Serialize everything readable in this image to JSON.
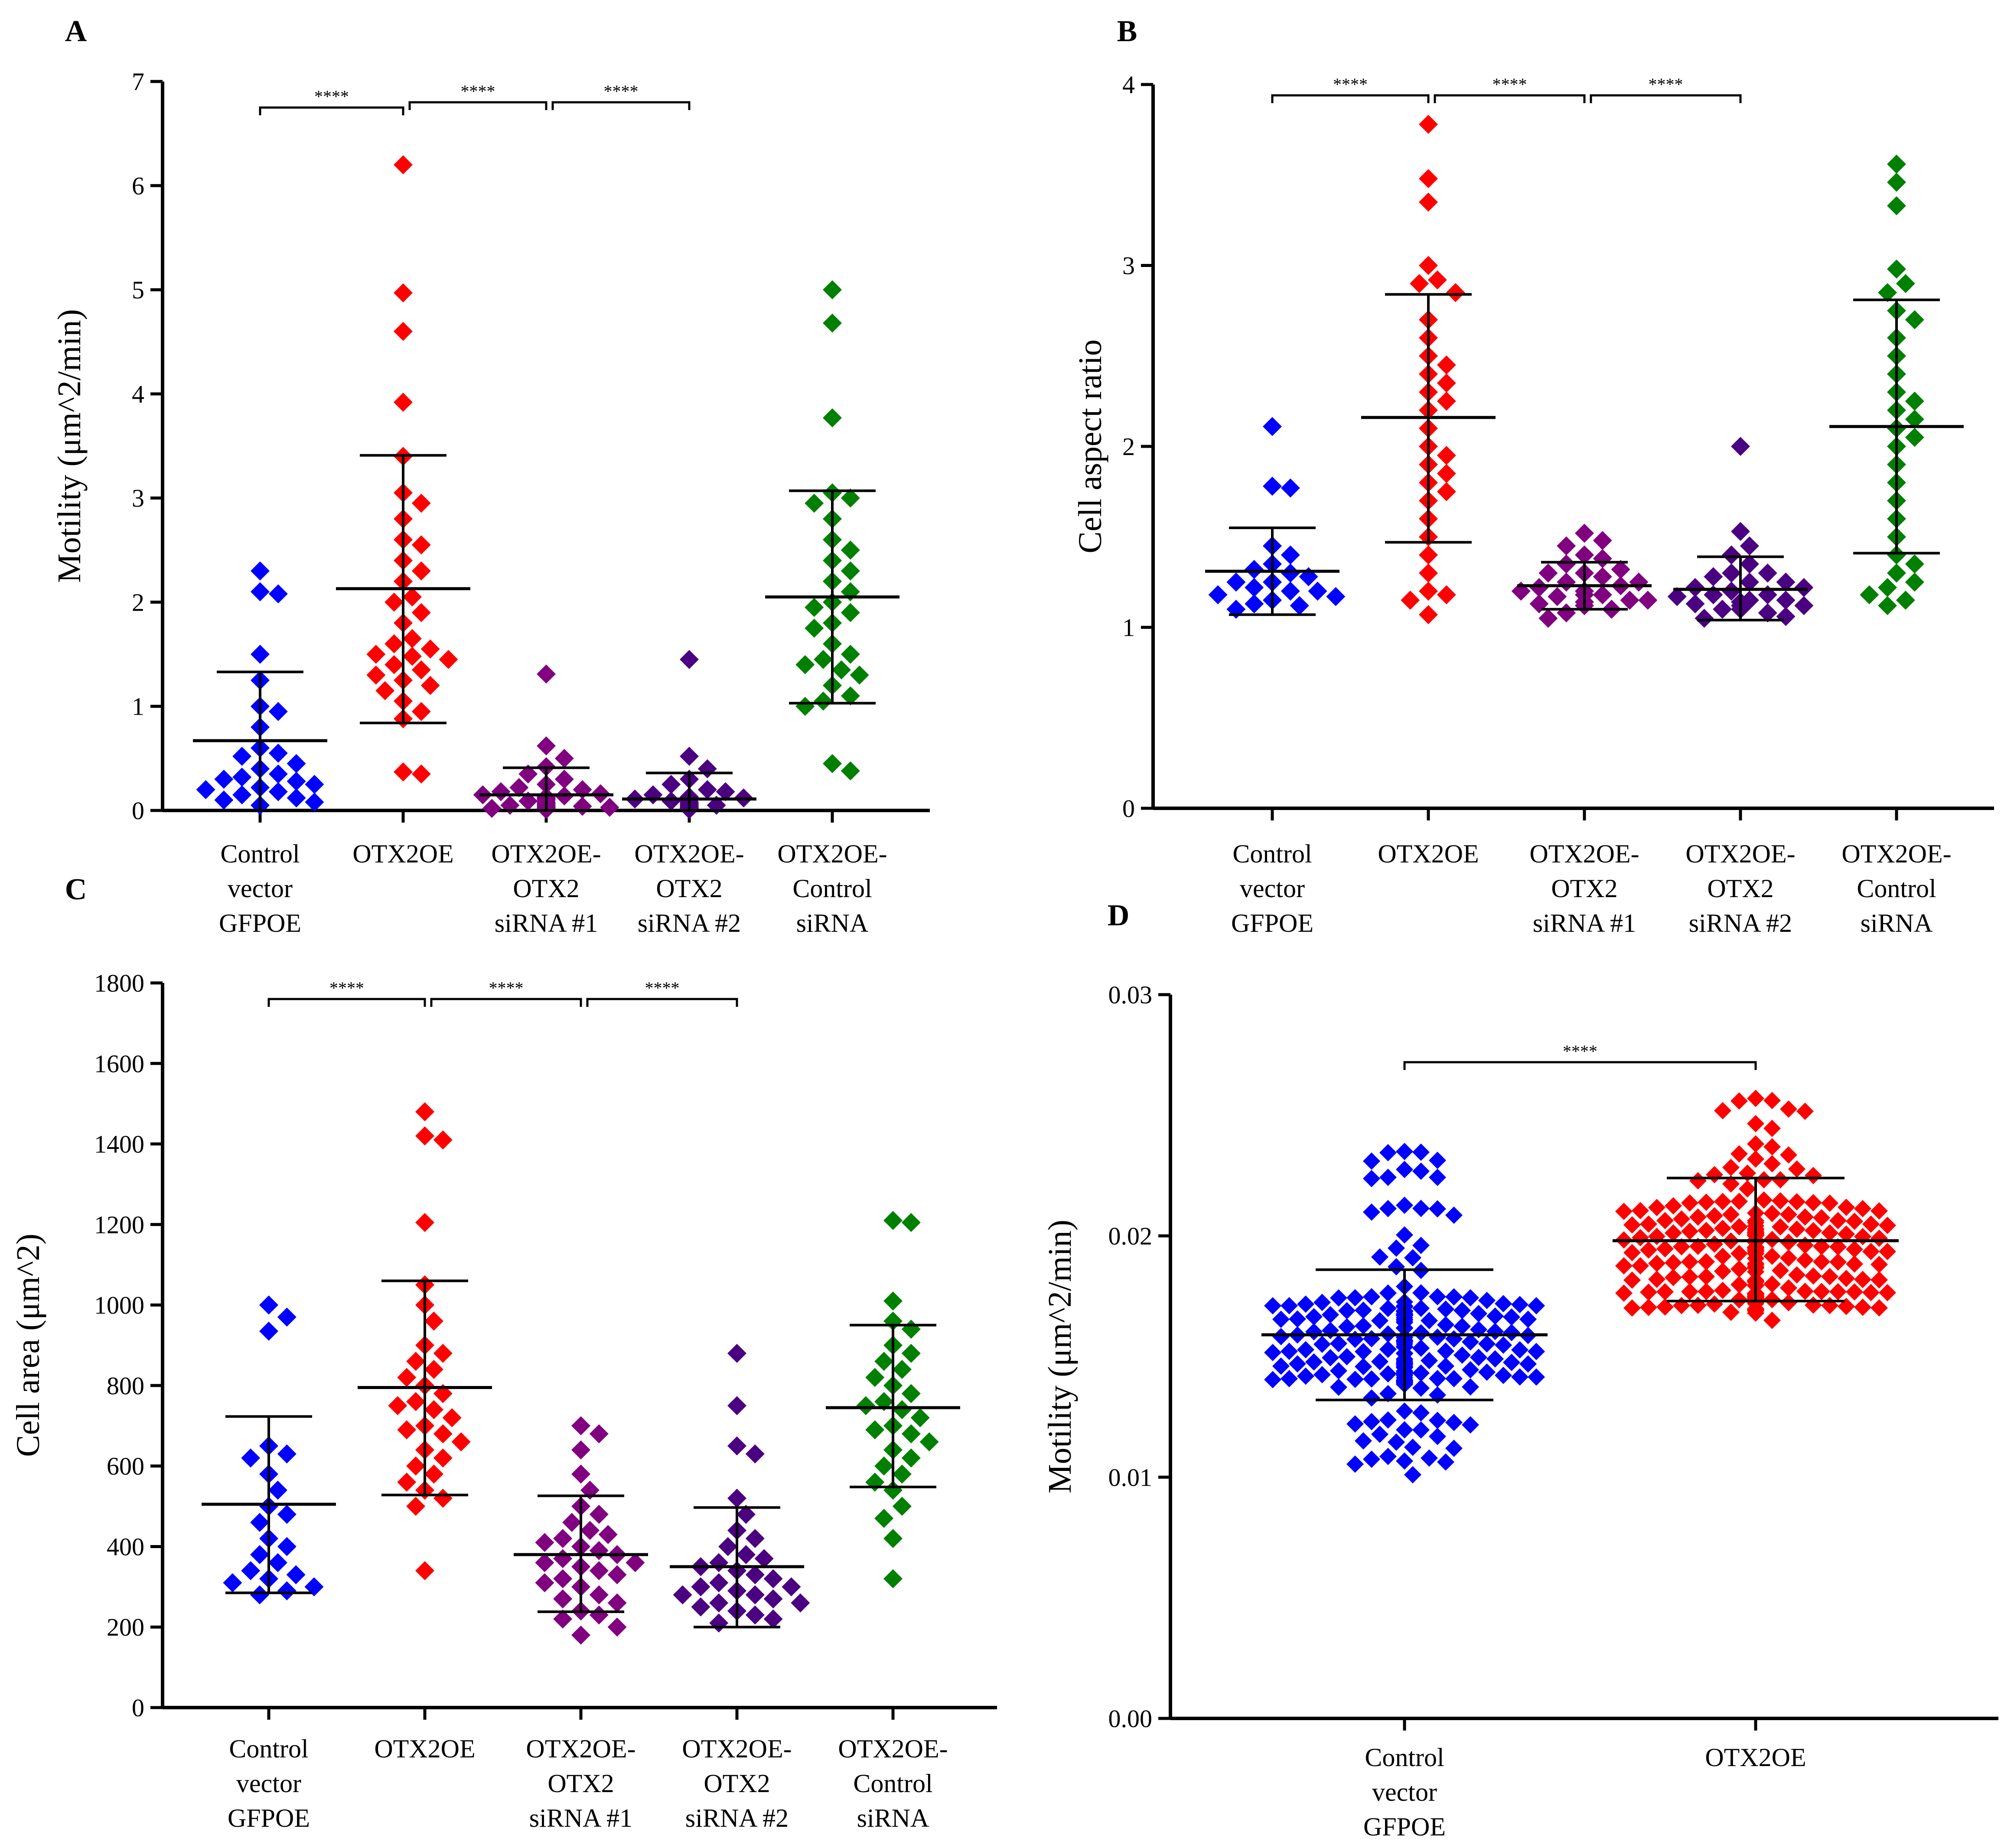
{
  "colors": {
    "ctrl": "#0000ff",
    "otx": "#ff0000",
    "si1": "#800080",
    "si2": "#4b0082",
    "ctrlsi": "#008000"
  },
  "chart_data": [
    {
      "panel": "A",
      "type": "scatter",
      "ylabel": "Motility (μm^2/min)",
      "ylim": [
        0,
        7
      ],
      "yticks": [
        "0",
        "1",
        "2",
        "3",
        "4",
        "5",
        "6",
        "7"
      ],
      "categories": [
        [
          "Control",
          "vector",
          "GFPOE"
        ],
        [
          "OTX2OE"
        ],
        [
          "OTX2OE-",
          "OTX2",
          "siRNA #1"
        ],
        [
          "OTX2OE-",
          "OTX2",
          "siRNA #2"
        ],
        [
          "OTX2OE-",
          "Control",
          "siRNA"
        ]
      ],
      "series": [
        {
          "name": "Control vector GFPOE",
          "color": "#0000ff",
          "mean": 0.67,
          "sd_low": 0.0,
          "sd_high": 1.33,
          "values": [
            2.3,
            2.1,
            2.08,
            1.5,
            1.25,
            1.0,
            0.95,
            0.8,
            0.6,
            0.55,
            0.52,
            0.45,
            0.4,
            0.35,
            0.32,
            0.3,
            0.28,
            0.25,
            0.22,
            0.2,
            0.18,
            0.15,
            0.12,
            0.1,
            0.08,
            0.05
          ]
        },
        {
          "name": "OTX2OE",
          "color": "#ff0000",
          "mean": 2.13,
          "sd_low": 0.84,
          "sd_high": 3.41,
          "values": [
            6.2,
            4.97,
            4.6,
            3.92,
            3.4,
            3.05,
            2.95,
            2.8,
            2.6,
            2.55,
            2.4,
            2.3,
            2.2,
            2.05,
            2.0,
            1.9,
            1.8,
            1.65,
            1.6,
            1.55,
            1.5,
            1.48,
            1.45,
            1.4,
            1.35,
            1.3,
            1.25,
            1.2,
            1.15,
            1.05,
            0.95,
            0.88,
            0.35,
            0.37
          ]
        },
        {
          "name": "OTX2OE-OTX2 siRNA #1",
          "color": "#800080",
          "mean": 0.15,
          "sd_low": 0.0,
          "sd_high": 0.41,
          "values": [
            1.31,
            0.62,
            0.5,
            0.42,
            0.35,
            0.3,
            0.25,
            0.22,
            0.2,
            0.18,
            0.16,
            0.15,
            0.14,
            0.13,
            0.12,
            0.11,
            0.1,
            0.09,
            0.08,
            0.07,
            0.06,
            0.05,
            0.05,
            0.04,
            0.03,
            0.03,
            0.02,
            0.02,
            0.01,
            0.01,
            0.02,
            0.04
          ]
        },
        {
          "name": "OTX2OE-OTX2 siRNA #2",
          "color": "#4b0082",
          "mean": 0.11,
          "sd_low": 0.0,
          "sd_high": 0.36,
          "values": [
            1.45,
            0.52,
            0.4,
            0.3,
            0.25,
            0.2,
            0.18,
            0.15,
            0.13,
            0.12,
            0.11,
            0.1,
            0.09,
            0.08,
            0.07,
            0.06,
            0.05,
            0.05,
            0.04,
            0.04,
            0.03,
            0.03,
            0.02,
            0.02,
            0.01,
            0.01,
            0.02,
            0.03,
            0.06,
            0.08
          ]
        },
        {
          "name": "OTX2OE-Control siRNA",
          "color": "#008000",
          "mean": 2.05,
          "sd_low": 1.03,
          "sd_high": 3.07,
          "values": [
            5.0,
            4.68,
            3.77,
            3.05,
            3.0,
            2.95,
            2.8,
            2.6,
            2.5,
            2.4,
            2.3,
            2.2,
            2.1,
            2.0,
            1.95,
            1.9,
            1.8,
            1.75,
            1.6,
            1.5,
            1.45,
            1.4,
            1.35,
            1.3,
            1.2,
            1.1,
            1.05,
            1.0,
            0.45,
            0.38
          ]
        }
      ],
      "comparisons": [
        {
          "from": 0,
          "to": 1,
          "label": "****",
          "y": 6.75
        },
        {
          "from": 1,
          "to": 2,
          "label": "****",
          "y": 6.8
        },
        {
          "from": 2,
          "to": 3,
          "label": "****",
          "y": 6.8
        }
      ]
    },
    {
      "panel": "B",
      "type": "scatter",
      "ylabel": "Cell aspect ratio",
      "ylim": [
        0,
        4
      ],
      "yticks": [
        "0",
        "1",
        "2",
        "3",
        "4"
      ],
      "categories": [
        [
          "Control",
          "vector",
          "GFPOE"
        ],
        [
          "OTX2OE"
        ],
        [
          "OTX2OE-",
          "OTX2",
          "siRNA #1"
        ],
        [
          "OTX2OE-",
          "OTX2",
          "siRNA #2"
        ],
        [
          "OTX2OE-",
          "Control",
          "siRNA"
        ]
      ],
      "series": [
        {
          "name": "Control vector GFPOE",
          "color": "#0000ff",
          "mean": 1.31,
          "sd_low": 1.07,
          "sd_high": 1.55,
          "values": [
            2.11,
            1.78,
            1.77,
            1.45,
            1.4,
            1.35,
            1.32,
            1.3,
            1.28,
            1.25,
            1.22,
            1.2,
            1.18,
            1.17,
            1.15,
            1.13,
            1.12,
            1.1,
            1.2,
            1.25
          ]
        },
        {
          "name": "OTX2OE",
          "color": "#ff0000",
          "mean": 2.16,
          "sd_low": 1.47,
          "sd_high": 2.84,
          "values": [
            3.78,
            3.48,
            3.35,
            3.0,
            2.92,
            2.9,
            2.85,
            2.7,
            2.6,
            2.5,
            2.45,
            2.4,
            2.35,
            2.3,
            2.25,
            2.2,
            2.1,
            2.0,
            1.95,
            1.9,
            1.85,
            1.8,
            1.75,
            1.7,
            1.6,
            1.5,
            1.4,
            1.3,
            1.2,
            1.15,
            1.07,
            1.18
          ]
        },
        {
          "name": "OTX2OE-OTX2 siRNA #1",
          "color": "#800080",
          "mean": 1.23,
          "sd_low": 1.1,
          "sd_high": 1.36,
          "values": [
            1.52,
            1.48,
            1.45,
            1.4,
            1.38,
            1.35,
            1.32,
            1.3,
            1.28,
            1.25,
            1.23,
            1.22,
            1.2,
            1.18,
            1.17,
            1.15,
            1.14,
            1.13,
            1.12,
            1.1,
            1.08,
            1.05,
            1.25,
            1.2,
            1.15,
            1.3,
            1.18,
            1.12
          ]
        },
        {
          "name": "OTX2OE-OTX2 siRNA #2",
          "color": "#4b0082",
          "mean": 1.21,
          "sd_low": 1.04,
          "sd_high": 1.39,
          "values": [
            2.0,
            1.53,
            1.45,
            1.4,
            1.35,
            1.3,
            1.28,
            1.25,
            1.22,
            1.2,
            1.18,
            1.17,
            1.15,
            1.14,
            1.13,
            1.12,
            1.1,
            1.08,
            1.06,
            1.05,
            1.22,
            1.18,
            1.15,
            1.12,
            1.1,
            1.25,
            1.3
          ]
        },
        {
          "name": "OTX2OE-Control siRNA",
          "color": "#008000",
          "mean": 2.11,
          "sd_low": 1.41,
          "sd_high": 2.81,
          "values": [
            3.56,
            3.46,
            3.33,
            2.98,
            2.9,
            2.85,
            2.75,
            2.7,
            2.6,
            2.5,
            2.4,
            2.3,
            2.25,
            2.2,
            2.15,
            2.1,
            2.05,
            2.0,
            1.9,
            1.8,
            1.7,
            1.6,
            1.5,
            1.4,
            1.35,
            1.3,
            1.25,
            1.22,
            1.18,
            1.15,
            1.12
          ]
        }
      ],
      "comparisons": [
        {
          "from": 0,
          "to": 1,
          "label": "****",
          "y": 3.94
        },
        {
          "from": 1,
          "to": 2,
          "label": "****",
          "y": 3.94
        },
        {
          "from": 2,
          "to": 3,
          "label": "****",
          "y": 3.94
        }
      ]
    },
    {
      "panel": "C",
      "type": "scatter",
      "ylabel": "Cell area (μm^2)",
      "ylim": [
        0,
        1800
      ],
      "yticks": [
        "0",
        "200",
        "400",
        "600",
        "800",
        "1000",
        "1200",
        "1400",
        "1600",
        "1800"
      ],
      "categories": [
        [
          "Control",
          "vector",
          "GFPOE"
        ],
        [
          "OTX2OE"
        ],
        [
          "OTX2OE-",
          "OTX2",
          "siRNA #1"
        ],
        [
          "OTX2OE-",
          "OTX2",
          "siRNA #2"
        ],
        [
          "OTX2OE-",
          "Control",
          "siRNA"
        ]
      ],
      "series": [
        {
          "name": "Control vector GFPOE",
          "color": "#0000ff",
          "mean": 505,
          "sd_low": 285,
          "sd_high": 723,
          "values": [
            1000,
            970,
            935,
            650,
            630,
            620,
            580,
            540,
            500,
            480,
            460,
            420,
            400,
            380,
            360,
            340,
            330,
            320,
            310,
            300,
            290,
            280
          ]
        },
        {
          "name": "OTX2OE",
          "color": "#ff0000",
          "mean": 795,
          "sd_low": 528,
          "sd_high": 1060,
          "values": [
            1480,
            1420,
            1410,
            1205,
            1050,
            1000,
            960,
            900,
            880,
            860,
            840,
            820,
            800,
            780,
            760,
            740,
            720,
            700,
            680,
            660,
            640,
            620,
            600,
            580,
            560,
            540,
            520,
            500,
            340,
            750,
            690
          ]
        },
        {
          "name": "OTX2OE-OTX2 siRNA #1",
          "color": "#800080",
          "mean": 380,
          "sd_low": 238,
          "sd_high": 526,
          "values": [
            700,
            680,
            640,
            580,
            540,
            500,
            460,
            440,
            420,
            400,
            390,
            380,
            370,
            360,
            350,
            340,
            330,
            320,
            300,
            280,
            260,
            240,
            220,
            200,
            180,
            430,
            410,
            360,
            310,
            270,
            230,
            480
          ]
        },
        {
          "name": "OTX2OE-OTX2 siRNA #2",
          "color": "#4b0082",
          "mean": 350,
          "sd_low": 200,
          "sd_high": 497,
          "values": [
            880,
            750,
            650,
            630,
            520,
            480,
            440,
            420,
            400,
            380,
            360,
            340,
            320,
            310,
            300,
            290,
            280,
            270,
            260,
            250,
            240,
            230,
            220,
            210,
            330,
            350,
            300,
            280,
            260,
            370
          ]
        },
        {
          "name": "OTX2OE-Control siRNA",
          "color": "#008000",
          "mean": 745,
          "sd_low": 548,
          "sd_high": 950,
          "values": [
            1210,
            1205,
            1010,
            960,
            940,
            900,
            880,
            860,
            840,
            820,
            800,
            780,
            760,
            740,
            720,
            700,
            680,
            660,
            640,
            620,
            600,
            580,
            560,
            540,
            500,
            470,
            420,
            320,
            750,
            690
          ]
        }
      ],
      "comparisons": [
        {
          "from": 0,
          "to": 1,
          "label": "****",
          "y": 1760
        },
        {
          "from": 1,
          "to": 2,
          "label": "****",
          "y": 1760
        },
        {
          "from": 2,
          "to": 3,
          "label": "****",
          "y": 1760
        }
      ]
    },
    {
      "panel": "D",
      "type": "scatter",
      "ylabel": "Motility  (μm^2/min)",
      "ylim": [
        0,
        0.03
      ],
      "yticks": [
        "0.00",
        "0.01",
        "0.02",
        "0.03"
      ],
      "categories": [
        [
          "Control",
          "vector",
          "GFPOE"
        ],
        [
          "OTX2OE"
        ]
      ],
      "series": [
        {
          "name": "Control vector GFPOE",
          "color": "#0000ff",
          "mean": 0.0159,
          "sd_low": 0.0132,
          "sd_high": 0.0186,
          "n": 220,
          "min": 0.0101,
          "max": 0.0235,
          "dense_low": 0.0138,
          "dense_high": 0.0175
        },
        {
          "name": "OTX2OE",
          "color": "#ff0000",
          "mean": 0.0198,
          "sd_low": 0.0173,
          "sd_high": 0.0224,
          "n": 220,
          "min": 0.0165,
          "max": 0.0257,
          "dense_low": 0.0168,
          "dense_high": 0.0215
        }
      ],
      "comparisons": [
        {
          "from": 0,
          "to": 1,
          "label": "****",
          "y": 0.0272
        }
      ]
    }
  ]
}
